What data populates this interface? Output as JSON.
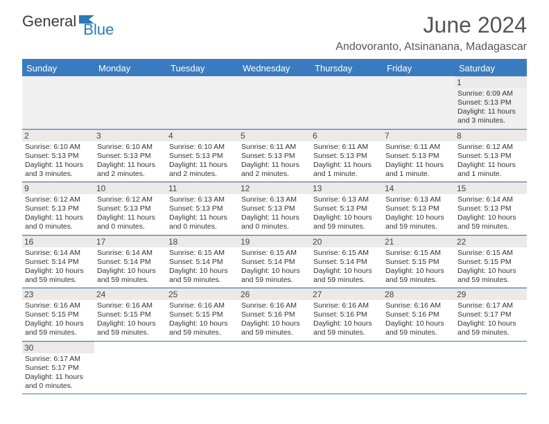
{
  "logo": {
    "text1": "General",
    "text2": "Blue",
    "flag_color": "#2a7ab8"
  },
  "title": "June 2024",
  "location": "Andovoranto, Atsinanana, Madagascar",
  "colors": {
    "header_bg": "#3a7bbf",
    "header_text": "#ffffff",
    "border": "#3a7bbf"
  },
  "day_names": [
    "Sunday",
    "Monday",
    "Tuesday",
    "Wednesday",
    "Thursday",
    "Friday",
    "Saturday"
  ],
  "weeks": [
    [
      null,
      null,
      null,
      null,
      null,
      null,
      {
        "n": "1",
        "sr": "6:09 AM",
        "ss": "5:13 PM",
        "dl": "11 hours and 3 minutes."
      }
    ],
    [
      {
        "n": "2",
        "sr": "6:10 AM",
        "ss": "5:13 PM",
        "dl": "11 hours and 3 minutes."
      },
      {
        "n": "3",
        "sr": "6:10 AM",
        "ss": "5:13 PM",
        "dl": "11 hours and 2 minutes."
      },
      {
        "n": "4",
        "sr": "6:10 AM",
        "ss": "5:13 PM",
        "dl": "11 hours and 2 minutes."
      },
      {
        "n": "5",
        "sr": "6:11 AM",
        "ss": "5:13 PM",
        "dl": "11 hours and 2 minutes."
      },
      {
        "n": "6",
        "sr": "6:11 AM",
        "ss": "5:13 PM",
        "dl": "11 hours and 1 minute."
      },
      {
        "n": "7",
        "sr": "6:11 AM",
        "ss": "5:13 PM",
        "dl": "11 hours and 1 minute."
      },
      {
        "n": "8",
        "sr": "6:12 AM",
        "ss": "5:13 PM",
        "dl": "11 hours and 1 minute."
      }
    ],
    [
      {
        "n": "9",
        "sr": "6:12 AM",
        "ss": "5:13 PM",
        "dl": "11 hours and 0 minutes."
      },
      {
        "n": "10",
        "sr": "6:12 AM",
        "ss": "5:13 PM",
        "dl": "11 hours and 0 minutes."
      },
      {
        "n": "11",
        "sr": "6:13 AM",
        "ss": "5:13 PM",
        "dl": "11 hours and 0 minutes."
      },
      {
        "n": "12",
        "sr": "6:13 AM",
        "ss": "5:13 PM",
        "dl": "11 hours and 0 minutes."
      },
      {
        "n": "13",
        "sr": "6:13 AM",
        "ss": "5:13 PM",
        "dl": "10 hours and 59 minutes."
      },
      {
        "n": "14",
        "sr": "6:13 AM",
        "ss": "5:13 PM",
        "dl": "10 hours and 59 minutes."
      },
      {
        "n": "15",
        "sr": "6:14 AM",
        "ss": "5:13 PM",
        "dl": "10 hours and 59 minutes."
      }
    ],
    [
      {
        "n": "16",
        "sr": "6:14 AM",
        "ss": "5:14 PM",
        "dl": "10 hours and 59 minutes."
      },
      {
        "n": "17",
        "sr": "6:14 AM",
        "ss": "5:14 PM",
        "dl": "10 hours and 59 minutes."
      },
      {
        "n": "18",
        "sr": "6:15 AM",
        "ss": "5:14 PM",
        "dl": "10 hours and 59 minutes."
      },
      {
        "n": "19",
        "sr": "6:15 AM",
        "ss": "5:14 PM",
        "dl": "10 hours and 59 minutes."
      },
      {
        "n": "20",
        "sr": "6:15 AM",
        "ss": "5:14 PM",
        "dl": "10 hours and 59 minutes."
      },
      {
        "n": "21",
        "sr": "6:15 AM",
        "ss": "5:15 PM",
        "dl": "10 hours and 59 minutes."
      },
      {
        "n": "22",
        "sr": "6:15 AM",
        "ss": "5:15 PM",
        "dl": "10 hours and 59 minutes."
      }
    ],
    [
      {
        "n": "23",
        "sr": "6:16 AM",
        "ss": "5:15 PM",
        "dl": "10 hours and 59 minutes."
      },
      {
        "n": "24",
        "sr": "6:16 AM",
        "ss": "5:15 PM",
        "dl": "10 hours and 59 minutes."
      },
      {
        "n": "25",
        "sr": "6:16 AM",
        "ss": "5:15 PM",
        "dl": "10 hours and 59 minutes."
      },
      {
        "n": "26",
        "sr": "6:16 AM",
        "ss": "5:16 PM",
        "dl": "10 hours and 59 minutes."
      },
      {
        "n": "27",
        "sr": "6:16 AM",
        "ss": "5:16 PM",
        "dl": "10 hours and 59 minutes."
      },
      {
        "n": "28",
        "sr": "6:16 AM",
        "ss": "5:16 PM",
        "dl": "10 hours and 59 minutes."
      },
      {
        "n": "29",
        "sr": "6:17 AM",
        "ss": "5:17 PM",
        "dl": "10 hours and 59 minutes."
      }
    ],
    [
      {
        "n": "30",
        "sr": "6:17 AM",
        "ss": "5:17 PM",
        "dl": "11 hours and 0 minutes."
      },
      null,
      null,
      null,
      null,
      null,
      null
    ]
  ],
  "labels": {
    "sunrise": "Sunrise:",
    "sunset": "Sunset:",
    "daylight": "Daylight:"
  }
}
